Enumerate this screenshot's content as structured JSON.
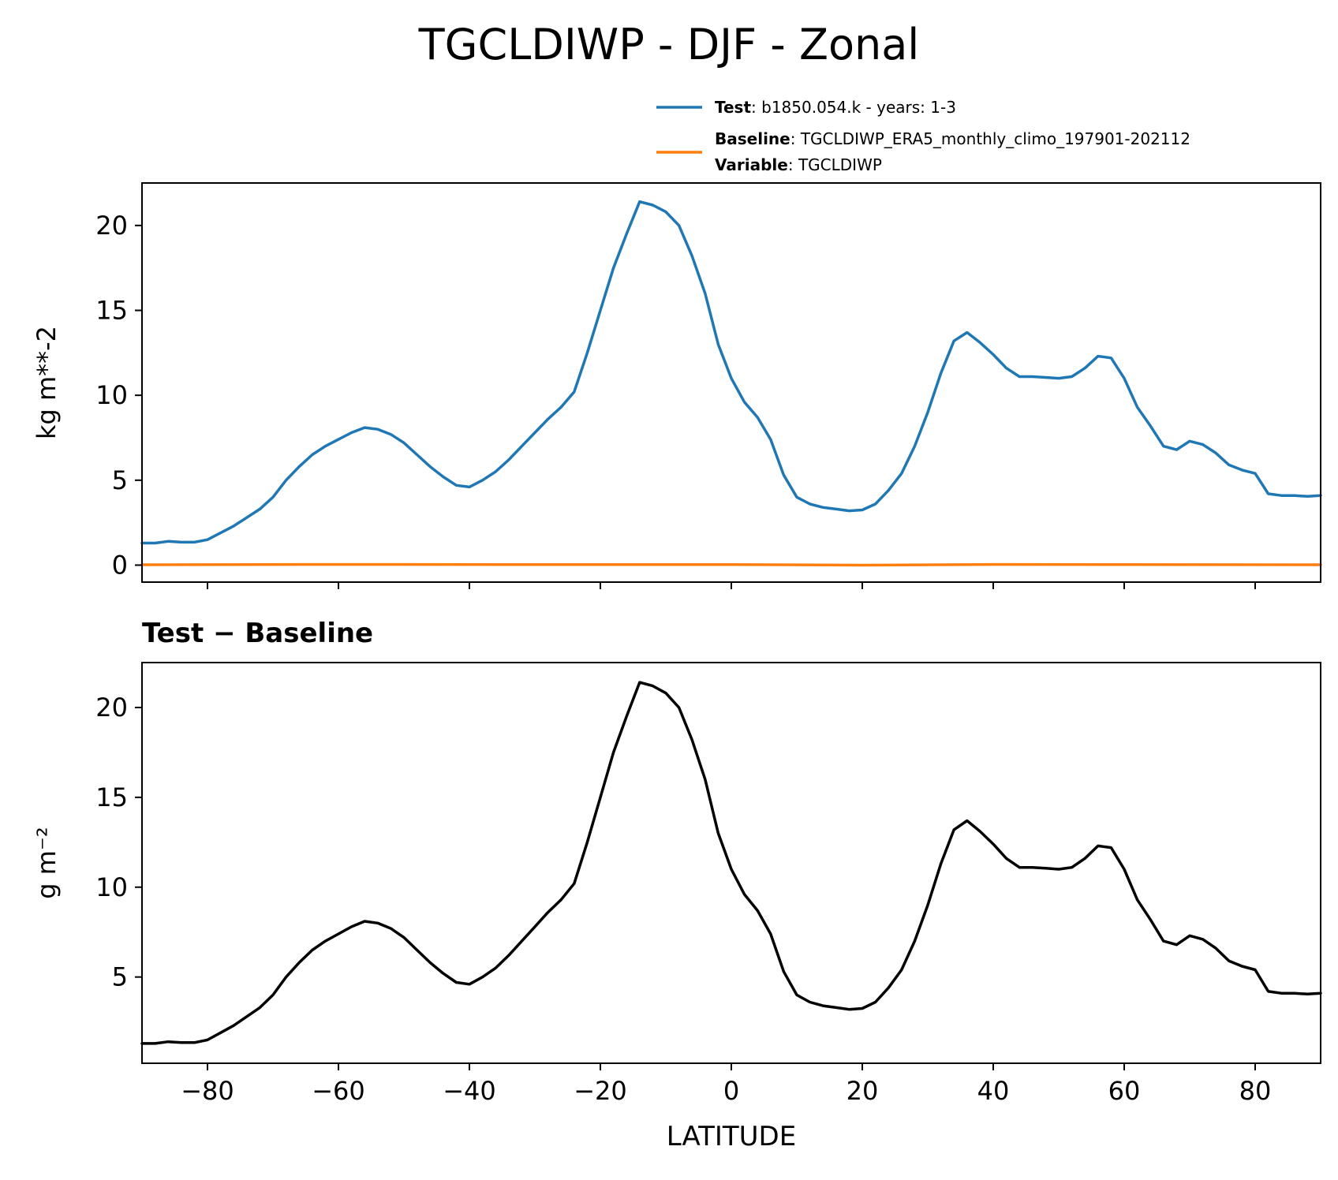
{
  "figure": {
    "title": "TGCLDIWP - DJF - Zonal"
  },
  "legend": {
    "entries": [
      {
        "key": "Test",
        "sep": ": ",
        "value": "b1850.054.k - years: 1-3",
        "color": "#1f77b4"
      },
      {
        "key": "Baseline",
        "sep": ": ",
        "value": "TGCLDIWP_ERA5_monthly_climo_197901-202112",
        "color": "#ff7f0e"
      },
      {
        "key": "Variable",
        "sep": ": ",
        "value": "TGCLDIWP",
        "color": null
      }
    ]
  },
  "chart_data": [
    {
      "type": "line",
      "ylabel": "kg m**-2",
      "xlim": [
        -90,
        90
      ],
      "ylim": [
        -1,
        22.5
      ],
      "yticks": [
        0,
        5,
        10,
        15,
        20
      ],
      "xticks": [
        -80,
        -60,
        -40,
        -20,
        0,
        20,
        40,
        60,
        80
      ],
      "show_xtick_labels": false,
      "grid": false,
      "legend_position": "above-right",
      "series": [
        {
          "name": "Test",
          "color": "#1f77b4",
          "x": [
            -90,
            -88,
            -86,
            -84,
            -82,
            -80,
            -78,
            -76,
            -74,
            -72,
            -70,
            -68,
            -66,
            -64,
            -62,
            -60,
            -58,
            -56,
            -54,
            -52,
            -50,
            -48,
            -46,
            -44,
            -42,
            -40,
            -38,
            -36,
            -34,
            -32,
            -30,
            -28,
            -26,
            -24,
            -22,
            -20,
            -18,
            -16,
            -14,
            -12,
            -10,
            -8,
            -6,
            -4,
            -2,
            0,
            2,
            4,
            6,
            8,
            10,
            12,
            14,
            16,
            18,
            20,
            22,
            24,
            26,
            28,
            30,
            32,
            34,
            36,
            38,
            40,
            42,
            44,
            46,
            48,
            50,
            52,
            54,
            56,
            58,
            60,
            62,
            64,
            66,
            68,
            70,
            72,
            74,
            76,
            78,
            80,
            82,
            84,
            86,
            88,
            90
          ],
          "y": [
            1.3,
            1.3,
            1.4,
            1.35,
            1.35,
            1.5,
            1.9,
            2.3,
            2.8,
            3.3,
            4.0,
            5.0,
            5.8,
            6.5,
            7.0,
            7.4,
            7.8,
            8.1,
            8.0,
            7.7,
            7.2,
            6.5,
            5.8,
            5.2,
            4.7,
            4.6,
            5.0,
            5.5,
            6.2,
            7.0,
            7.8,
            8.6,
            9.3,
            10.2,
            12.5,
            15.0,
            17.5,
            19.5,
            21.4,
            21.2,
            20.8,
            20.0,
            18.2,
            16.0,
            13.0,
            11.0,
            9.6,
            8.7,
            7.4,
            5.3,
            4.0,
            3.6,
            3.4,
            3.3,
            3.2,
            3.25,
            3.6,
            4.4,
            5.4,
            7.0,
            9.0,
            11.3,
            13.2,
            13.7,
            13.1,
            12.4,
            11.6,
            11.1,
            11.1,
            11.05,
            11.0,
            11.1,
            11.6,
            12.3,
            12.2,
            11.0,
            9.3,
            8.2,
            7.0,
            6.8,
            7.3,
            7.1,
            6.6,
            5.9,
            5.6,
            5.4,
            4.2,
            4.1,
            4.1,
            4.05,
            4.1
          ]
        },
        {
          "name": "Baseline",
          "color": "#ff7f0e",
          "x": [
            -90,
            -60,
            -30,
            0,
            20,
            40,
            60,
            90
          ],
          "y": [
            0.02,
            0.04,
            0.03,
            0.03,
            0.0,
            0.04,
            0.03,
            0.02
          ]
        }
      ]
    },
    {
      "type": "line",
      "title": "Test − Baseline",
      "ylabel": "g m⁻²",
      "xlabel": "LATITUDE",
      "xlim": [
        -90,
        90
      ],
      "ylim": [
        0.2,
        22.5
      ],
      "yticks": [
        5,
        10,
        15,
        20
      ],
      "xticks": [
        -80,
        -60,
        -40,
        -20,
        0,
        20,
        40,
        60,
        80
      ],
      "xtick_labels": [
        "−80",
        "−60",
        "−40",
        "−20",
        "0",
        "20",
        "40",
        "60",
        "80"
      ],
      "show_xtick_labels": true,
      "grid": false,
      "series": [
        {
          "name": "",
          "color": "#000000",
          "x": [
            -90,
            -88,
            -86,
            -84,
            -82,
            -80,
            -78,
            -76,
            -74,
            -72,
            -70,
            -68,
            -66,
            -64,
            -62,
            -60,
            -58,
            -56,
            -54,
            -52,
            -50,
            -48,
            -46,
            -44,
            -42,
            -40,
            -38,
            -36,
            -34,
            -32,
            -30,
            -28,
            -26,
            -24,
            -22,
            -20,
            -18,
            -16,
            -14,
            -12,
            -10,
            -8,
            -6,
            -4,
            -2,
            0,
            2,
            4,
            6,
            8,
            10,
            12,
            14,
            16,
            18,
            20,
            22,
            24,
            26,
            28,
            30,
            32,
            34,
            36,
            38,
            40,
            42,
            44,
            46,
            48,
            50,
            52,
            54,
            56,
            58,
            60,
            62,
            64,
            66,
            68,
            70,
            72,
            74,
            76,
            78,
            80,
            82,
            84,
            86,
            88,
            90
          ],
          "y": [
            1.3,
            1.3,
            1.4,
            1.35,
            1.35,
            1.5,
            1.9,
            2.3,
            2.8,
            3.3,
            4.0,
            5.0,
            5.8,
            6.5,
            7.0,
            7.4,
            7.8,
            8.1,
            8.0,
            7.7,
            7.2,
            6.5,
            5.8,
            5.2,
            4.7,
            4.6,
            5.0,
            5.5,
            6.2,
            7.0,
            7.8,
            8.6,
            9.3,
            10.2,
            12.5,
            15.0,
            17.5,
            19.5,
            21.4,
            21.2,
            20.8,
            20.0,
            18.2,
            16.0,
            13.0,
            11.0,
            9.6,
            8.7,
            7.4,
            5.3,
            4.0,
            3.6,
            3.4,
            3.3,
            3.2,
            3.25,
            3.6,
            4.4,
            5.4,
            7.0,
            9.0,
            11.3,
            13.2,
            13.7,
            13.1,
            12.4,
            11.6,
            11.1,
            11.1,
            11.05,
            11.0,
            11.1,
            11.6,
            12.3,
            12.2,
            11.0,
            9.3,
            8.2,
            7.0,
            6.8,
            7.3,
            7.1,
            6.6,
            5.9,
            5.6,
            5.4,
            4.2,
            4.1,
            4.1,
            4.05,
            4.1
          ]
        }
      ]
    }
  ]
}
